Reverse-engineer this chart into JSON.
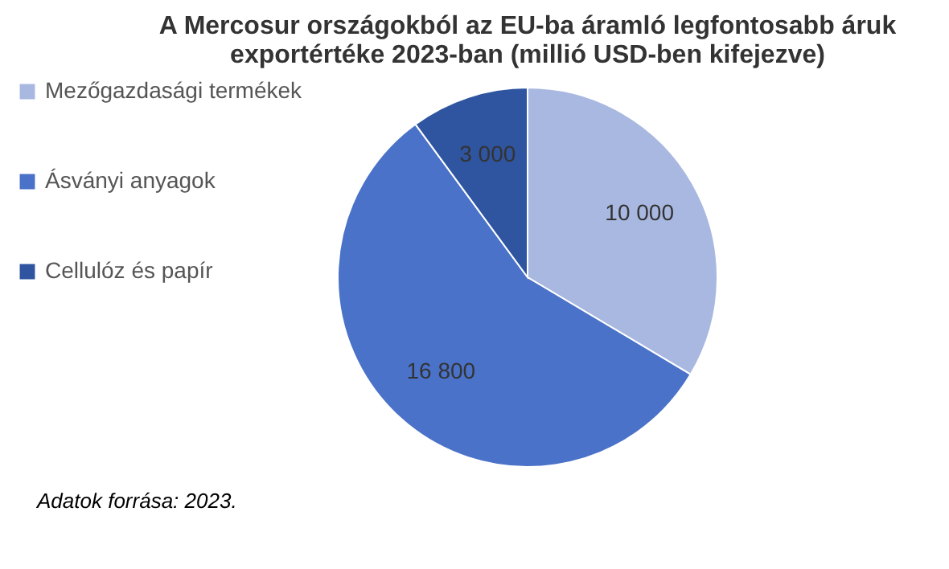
{
  "chart_data": {
    "type": "pie",
    "title": [
      "A Mercosur országokból az EU-ba áramló legfontosabb áruk",
      "exportértéke 2023-ban (millió USD-ben kifejezve)"
    ],
    "categories": [
      "Mezőgazdasági termékek",
      "Ásványi anyagok",
      "Cellulóz és papír"
    ],
    "values": [
      10000,
      16800,
      3000
    ],
    "colors": [
      "#a9b8e0",
      "#4a72c8",
      "#2f55a0"
    ],
    "value_labels": [
      "10 000",
      "16 800",
      "3 000"
    ],
    "legend": "left",
    "annotations": [
      "Adatok forrása: 2023."
    ]
  }
}
